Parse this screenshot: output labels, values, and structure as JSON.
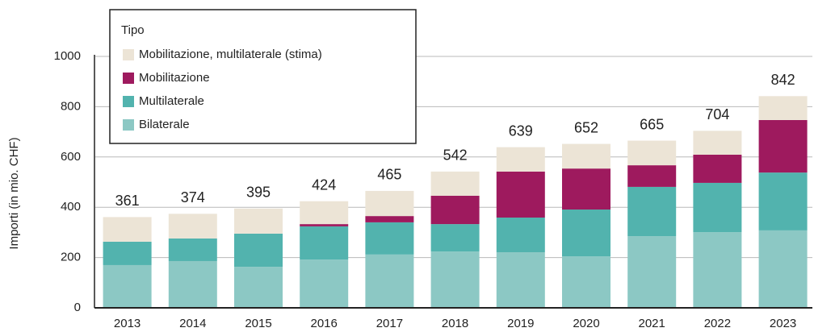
{
  "chart_data": {
    "type": "stacked_bar",
    "y_label": "Importi (in mio. CHF)",
    "legend_title": "Tipo",
    "categories": [
      "2013",
      "2014",
      "2015",
      "2016",
      "2017",
      "2018",
      "2019",
      "2020",
      "2021",
      "2022",
      "2023"
    ],
    "series": [
      {
        "name": "Bilaterale",
        "color": "#8cc8c4",
        "values": [
          170,
          186,
          163,
          192,
          212,
          224,
          221,
          205,
          285,
          301,
          308
        ]
      },
      {
        "name": "Multilaterale",
        "color": "#52b3ae",
        "values": [
          93,
          90,
          132,
          132,
          128,
          109,
          138,
          186,
          196,
          196,
          230
        ]
      },
      {
        "name": "Mobilitazione",
        "color": "#9e1a5e",
        "values": [
          0,
          0,
          0,
          9,
          25,
          113,
          183,
          163,
          86,
          112,
          209
        ]
      },
      {
        "name": "Mobilitazione, multilaterale (stima)",
        "color": "#ece4d6",
        "values": [
          98,
          98,
          100,
          91,
          100,
          96,
          97,
          98,
          98,
          95,
          95
        ]
      }
    ],
    "totals": [
      361,
      374,
      395,
      424,
      465,
      542,
      639,
      652,
      665,
      704,
      842
    ],
    "ylim": [
      0,
      1000
    ],
    "yticks": [
      0,
      200,
      400,
      600,
      800,
      1000
    ],
    "grid": true
  }
}
